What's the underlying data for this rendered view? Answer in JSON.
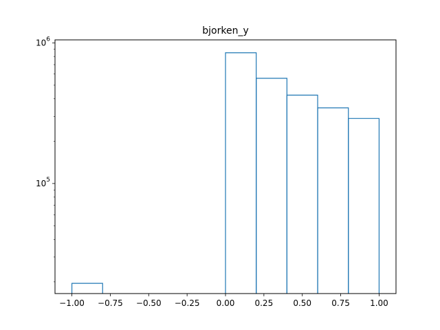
{
  "chart_data": {
    "type": "histogram",
    "title": "bjorken_y",
    "xlabel": "",
    "ylabel": "",
    "y_scale": "log",
    "grid": false,
    "xlim": [
      -1.11,
      1.11
    ],
    "ylim": [
      16500,
      1050000
    ],
    "bin_edges": [
      -1.0,
      -0.8,
      -0.6,
      -0.4,
      -0.2,
      0.0,
      0.2,
      0.4,
      0.6,
      0.8,
      1.0
    ],
    "counts": [
      19500,
      0,
      0,
      0,
      0,
      850000,
      560000,
      425000,
      345000,
      290000
    ],
    "x_ticks": [
      {
        "value": -1.0,
        "label": "−1.00"
      },
      {
        "value": -0.75,
        "label": "−0.75"
      },
      {
        "value": -0.5,
        "label": "−0.50"
      },
      {
        "value": -0.25,
        "label": "−0.25"
      },
      {
        "value": 0.0,
        "label": "0.00"
      },
      {
        "value": 0.25,
        "label": "0.25"
      },
      {
        "value": 0.5,
        "label": "0.50"
      },
      {
        "value": 0.75,
        "label": "0.75"
      },
      {
        "value": 1.0,
        "label": "1.00"
      }
    ],
    "y_major_ticks": [
      {
        "value": 100000,
        "base": "10",
        "exp": "5"
      },
      {
        "value": 1000000,
        "base": "10",
        "exp": "6"
      }
    ],
    "y_minor_ticks": [
      20000,
      30000,
      40000,
      50000,
      60000,
      70000,
      80000,
      90000,
      200000,
      300000,
      400000,
      500000,
      600000,
      700000,
      800000,
      900000
    ],
    "colors": {
      "series": "#1f77b4",
      "axes": "#000000",
      "background": "#ffffff"
    }
  }
}
